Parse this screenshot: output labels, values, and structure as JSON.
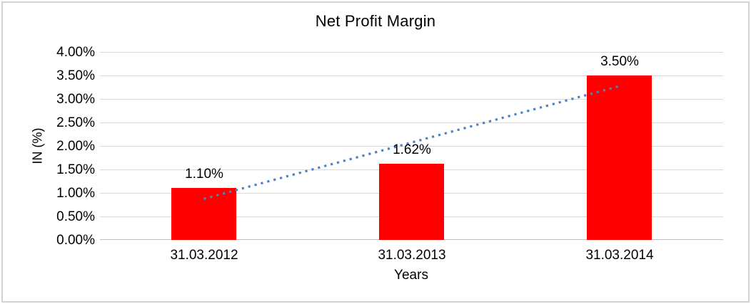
{
  "chart_data": {
    "type": "bar",
    "title": "Net Profit Margin",
    "xlabel": "Years",
    "ylabel": "IN (%)",
    "categories": [
      "31.03.2012",
      "31.03.2013",
      "31.03.2014"
    ],
    "series": [
      {
        "name": "Net Profit Margin",
        "values": [
          1.1,
          1.62,
          3.5
        ],
        "data_labels": [
          "1.10%",
          "1.62%",
          "3.50%"
        ],
        "color": "#ff0000"
      }
    ],
    "ylim": [
      0,
      4
    ],
    "ytick_step": 0.5,
    "ytick_labels_top_to_bottom": [
      "4.00%",
      "3.50%",
      "3.00%",
      "2.50%",
      "2.00%",
      "1.50%",
      "1.00%",
      "0.50%",
      "0.00%"
    ],
    "grid": "horizontal",
    "legend": "none",
    "trendline": {
      "type": "linear",
      "style": "dotted",
      "color": "#4a84c4",
      "y_start_pct": 0.873,
      "y_end_pct": 3.273
    },
    "colors": {
      "bar": "#ff0000",
      "trendline": "#4a84c4",
      "gridline": "#d9d9d9",
      "axis_line": "#bfbfbf",
      "frame_border": "#d3d3d3",
      "text": "#000000",
      "background": "#ffffff"
    }
  }
}
